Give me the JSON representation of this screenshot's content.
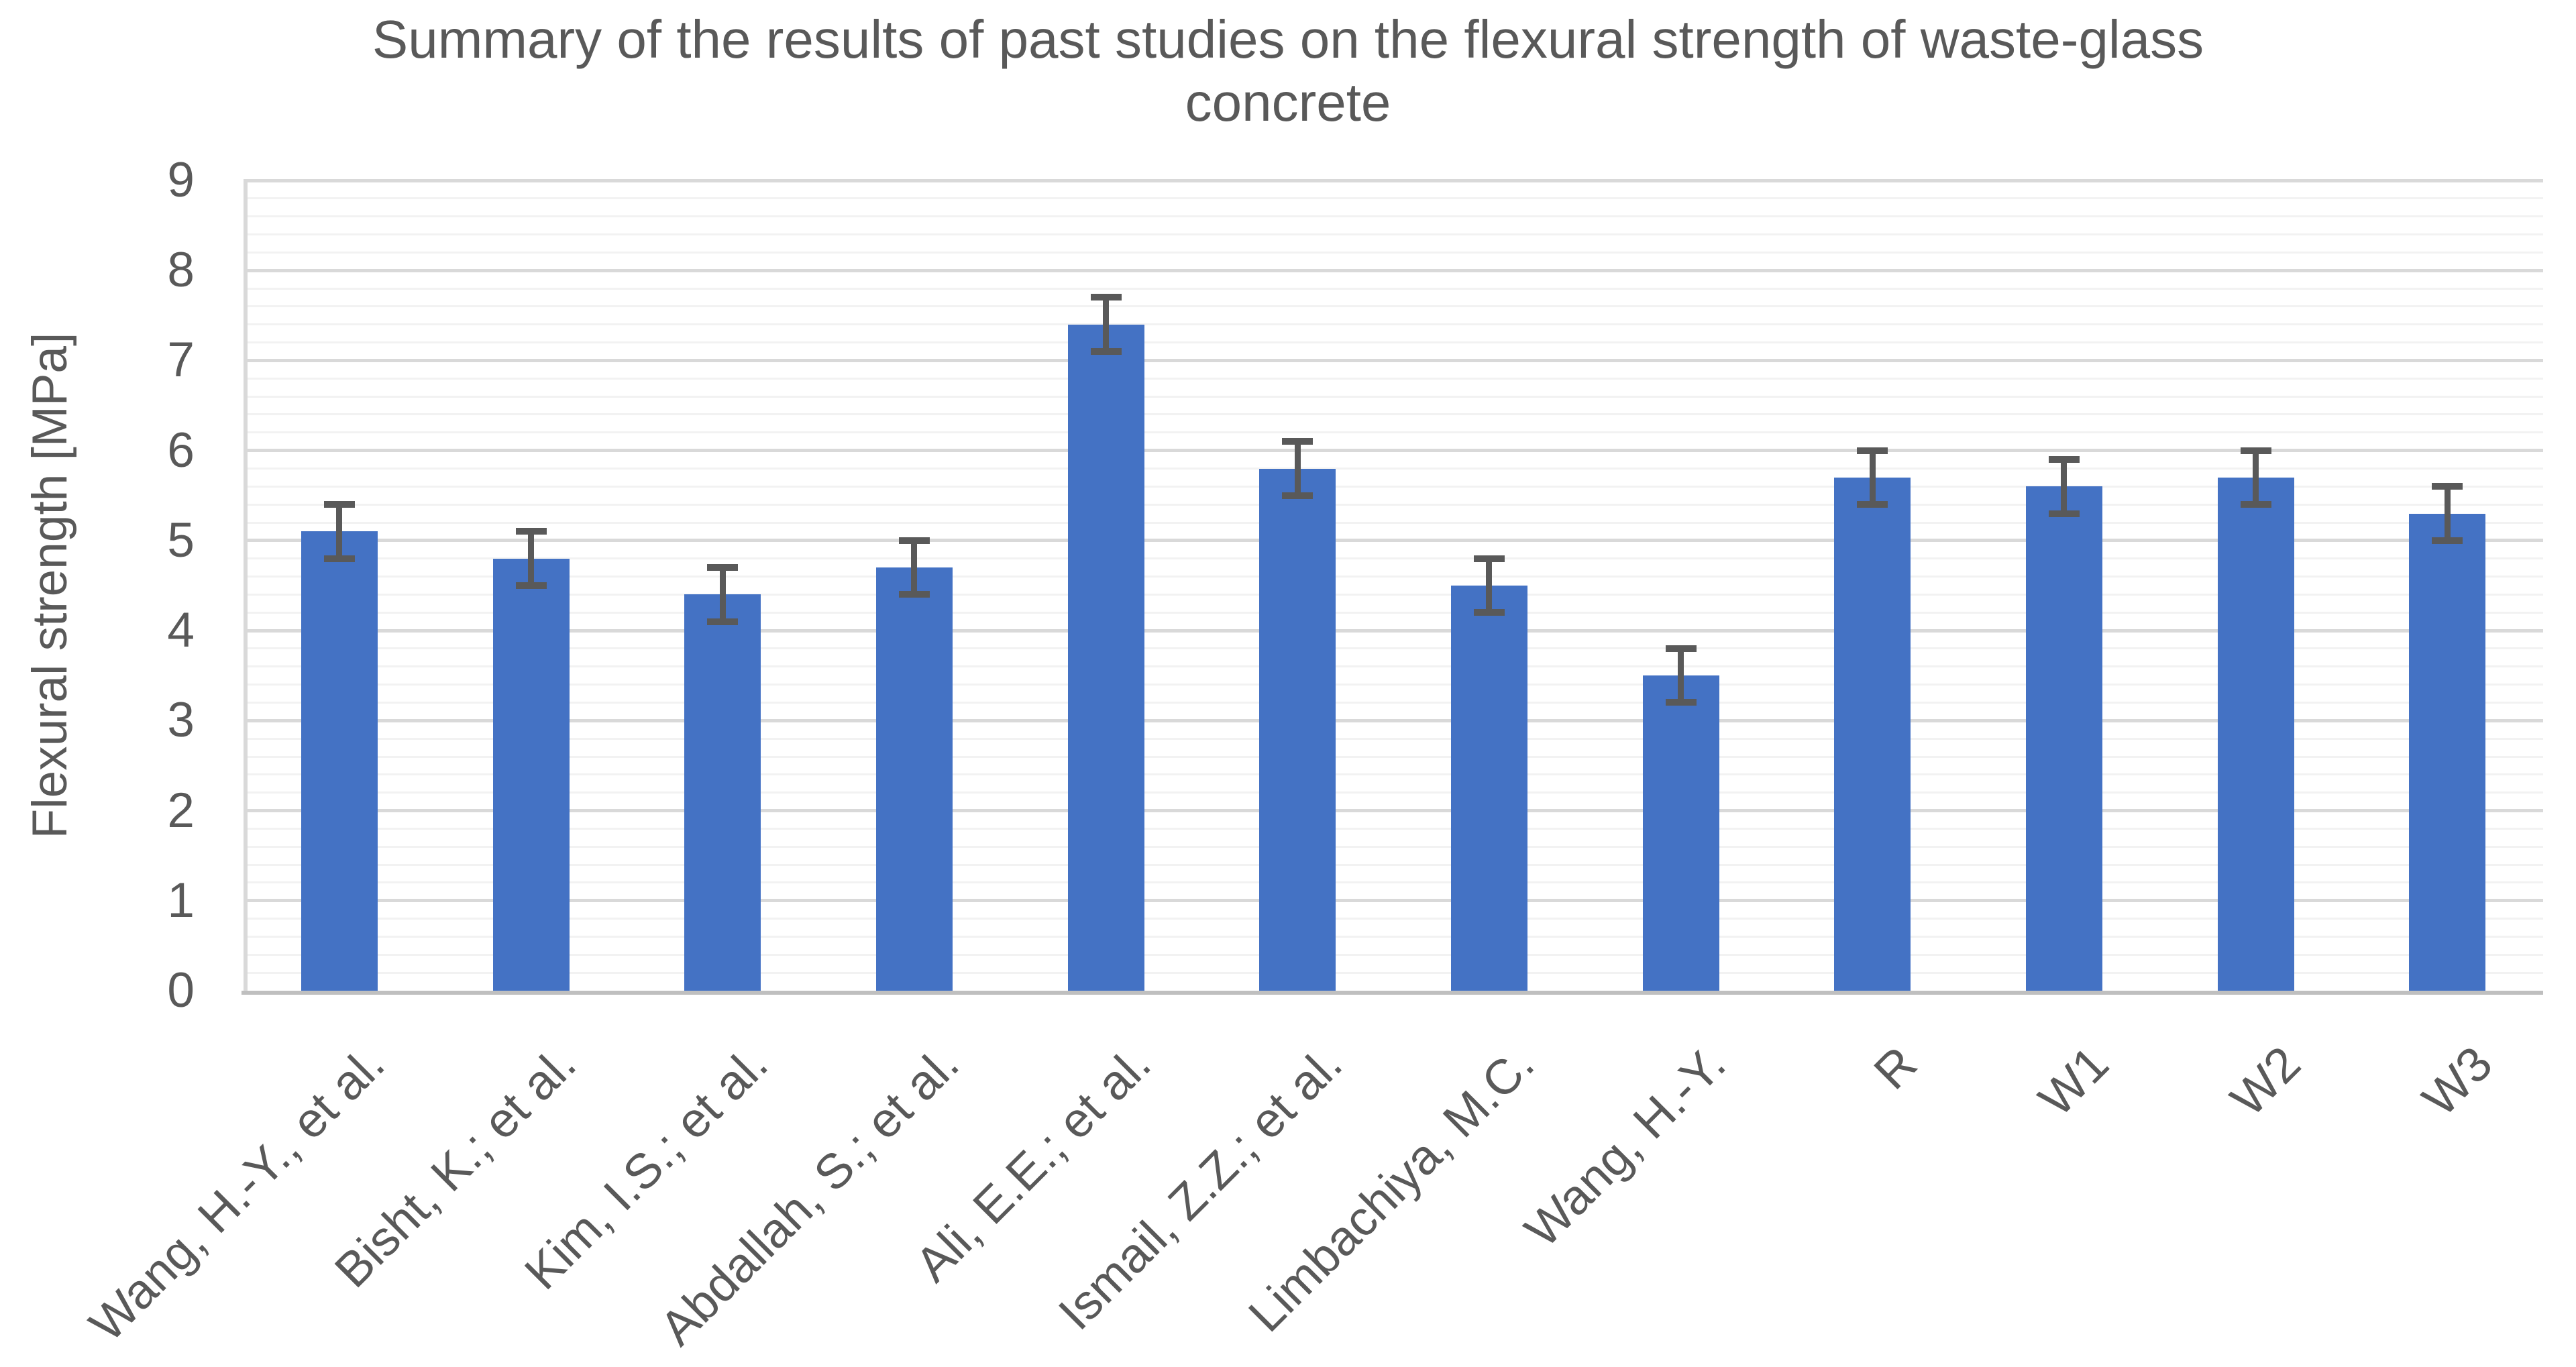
{
  "chart_data": {
    "type": "bar",
    "title": "Summary of the results of past studies on the flexural strength of waste-glass concrete",
    "title_lines": [
      "Summary of the results of past studies on the flexural strength of waste-glass",
      "concrete"
    ],
    "ylabel": "Flexural strength [MPa]",
    "xlabel": "",
    "categories": [
      "Wang, H.-Y., et al.",
      "Bisht, K.; et al.",
      "Kim, I.S.; et al.",
      "Abdallah, S.; et al.",
      "Ali, E.E.; et al.",
      "Ismail, Z.Z.; et al.",
      "Limbachiya, M.C.",
      "Wang, H.-Y.",
      "R",
      "W1",
      "W2",
      "W3"
    ],
    "values": [
      5.1,
      4.8,
      4.4,
      4.7,
      7.4,
      5.8,
      4.5,
      3.5,
      5.7,
      5.6,
      5.7,
      5.3
    ],
    "error_bars": [
      0.3,
      0.3,
      0.3,
      0.3,
      0.3,
      0.3,
      0.3,
      0.3,
      0.3,
      0.3,
      0.3,
      0.3
    ],
    "yticks": [
      "0",
      "1",
      "2",
      "3",
      "4",
      "5",
      "6",
      "7",
      "8",
      "9"
    ],
    "ylim": [
      0,
      9
    ],
    "ytick_step": 1,
    "minor_grid_step": 0.2,
    "grid": true,
    "legend": false,
    "bar_color": "#4472C4",
    "error_bar_color": "#595959",
    "text_color": "#595959",
    "major_grid_color": "#D9D9D9",
    "minor_grid_color": "#F2F2F2",
    "axis_line_color": "#BFBFBF",
    "plot_border_color": "#D9D9D9"
  }
}
